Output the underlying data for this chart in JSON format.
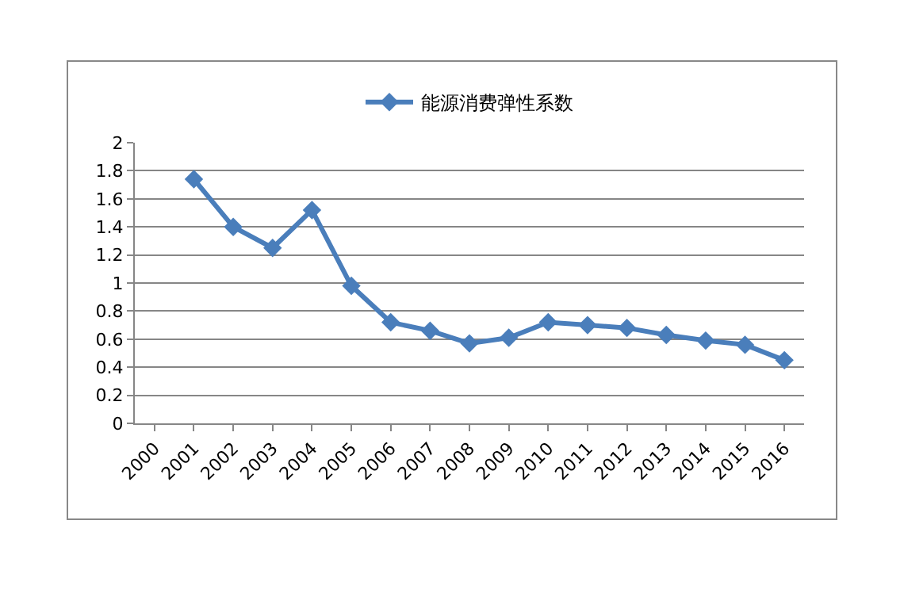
{
  "chart_data": {
    "type": "line",
    "categories": [
      "2000",
      "2001",
      "2002",
      "2003",
      "2004",
      "2005",
      "2006",
      "2007",
      "2008",
      "2009",
      "2010",
      "2011",
      "2012",
      "2013",
      "2014",
      "2015",
      "2016"
    ],
    "series": [
      {
        "name": "能源消费弹性系数",
        "color": "#4a7ebb",
        "values": [
          null,
          1.74,
          1.4,
          1.25,
          1.52,
          0.98,
          0.72,
          0.66,
          0.57,
          0.61,
          0.72,
          0.7,
          0.68,
          0.63,
          0.59,
          0.56,
          0.45
        ]
      }
    ],
    "ylim": [
      0,
      2
    ],
    "yticks": [
      0,
      {
        "value": 0.2,
        "label": "0.2"
      },
      {
        "value": 0.4,
        "label": "0.4"
      },
      {
        "value": 0.6,
        "label": "0.6"
      },
      {
        "value": 0.8,
        "label": "0.8"
      },
      1,
      {
        "value": 1.2,
        "label": "1.2"
      },
      {
        "value": 1.4,
        "label": "1.4"
      },
      {
        "value": 1.6,
        "label": "1.6"
      },
      {
        "value": 1.8,
        "label": "1.8"
      },
      2
    ],
    "grid": "y",
    "legend": "top",
    "marker": "diamond",
    "line_style": "solid"
  }
}
